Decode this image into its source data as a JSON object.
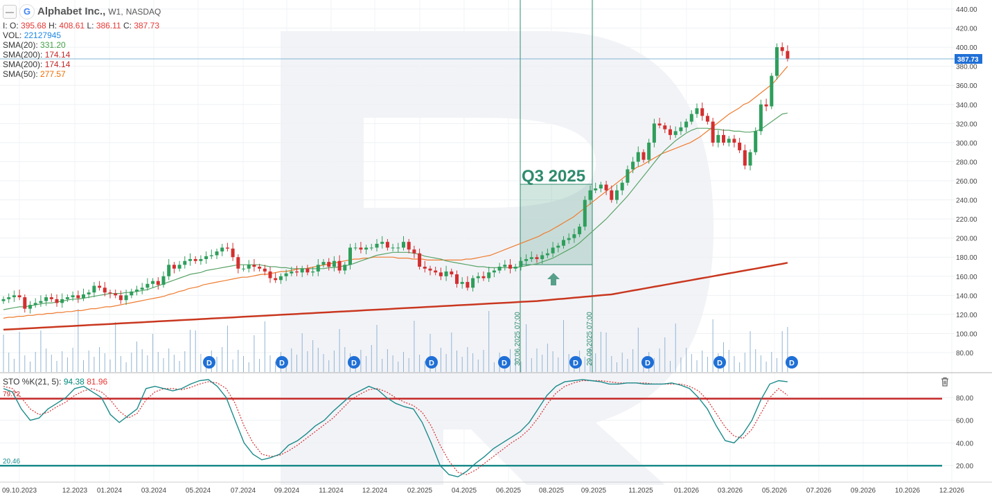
{
  "header": {
    "ticker": "Alphabet Inc.,",
    "timeframe": "W1,",
    "exchange": "NASDAQ",
    "ohlc": {
      "o_label": "I: O:",
      "o": "395.68",
      "h_label": "H:",
      "h": "408.61",
      "l_label": "L:",
      "l": "386.11",
      "c_label": "C:",
      "c": "387.73"
    },
    "vol_label": "VOL:",
    "vol": "22127945",
    "indicators": [
      {
        "label": "SMA(20):",
        "value": "331.20"
      },
      {
        "label": "SMA(200):",
        "value": "174.14"
      },
      {
        "label": "SMA(200):",
        "value": "174.14"
      },
      {
        "label": "SMA(50):",
        "value": "277.57"
      }
    ]
  },
  "oscillator": {
    "label": "STO %K(21, 5):",
    "k": "94.38",
    "d": "81.96",
    "upper_level": "79.72",
    "lower_level": "20.46"
  },
  "current_price_tag": "387.73",
  "annotation": {
    "label": "Q3 2025",
    "start_date": "30.06.2025 07:00",
    "end_date": "29.09.2025 07:00"
  },
  "dividend_marker": "D",
  "colors": {
    "up": "#2e9e5b",
    "down": "#d32f2f",
    "sma20": "#5aa469",
    "sma50": "#ef7b2e",
    "sma200": "#c9371f",
    "k": "#1a8a8a",
    "d": "#d32f2f",
    "level": "#c62828",
    "level_low": "#1a8a8a",
    "volume": "#90b4d4",
    "highlight": "#2e8b6d"
  },
  "chart_data": [
    {
      "type": "candlestick",
      "title": "Alphabet Inc., W1, NASDAQ",
      "xlabel": "",
      "ylabel": "",
      "ylim": [
        60,
        450
      ],
      "y_ticks": [
        "440.00",
        "420.00",
        "400.00",
        "380.00",
        "360.00",
        "340.00",
        "320.00",
        "300.00",
        "280.00",
        "260.00",
        "240.00",
        "220.00",
        "200.00",
        "180.00",
        "160.00",
        "140.00",
        "120.00",
        "100.00",
        "80.00"
      ],
      "x_ticks": [
        "09.10.2023",
        "12.2023",
        "01.2024",
        "03.2024",
        "05.2024",
        "07.2024",
        "09.2024",
        "11.2024",
        "12.2024",
        "02.2025",
        "04.2025",
        "06.2025",
        "08.2025",
        "09.2025",
        "11.2025",
        "01.2026",
        "03.2026",
        "05.2026",
        "07.2026",
        "09.2026",
        "10.2026",
        "12.2026"
      ],
      "closes": [
        136,
        138,
        140,
        138,
        126,
        130,
        132,
        134,
        138,
        136,
        132,
        136,
        138,
        140,
        137,
        141,
        143,
        150,
        148,
        143,
        142,
        140,
        135,
        140,
        144,
        146,
        148,
        152,
        155,
        151,
        160,
        172,
        168,
        172,
        176,
        178,
        176,
        178,
        181,
        182,
        186,
        190,
        189,
        180,
        168,
        168,
        172,
        170,
        168,
        165,
        158,
        156,
        160,
        163,
        165,
        164,
        168,
        164,
        165,
        172,
        175,
        170,
        176,
        166,
        172,
        190,
        190,
        188,
        190,
        190,
        194,
        196,
        190,
        190,
        190,
        196,
        188,
        184,
        170,
        168,
        166,
        164,
        160,
        165,
        162,
        152,
        154,
        148,
        158,
        160,
        158,
        164,
        166,
        170,
        172,
        168,
        170,
        176,
        178,
        180,
        178,
        182,
        184,
        190,
        192,
        198,
        200,
        204,
        212,
        240,
        250,
        252,
        256,
        250,
        240,
        250,
        258,
        272,
        280,
        290,
        282,
        300,
        320,
        318,
        314,
        308,
        312,
        316,
        322,
        330,
        336,
        328,
        322,
        300,
        308,
        300,
        304,
        300,
        292,
        276,
        290,
        312,
        340,
        338,
        370,
        400,
        396,
        388
      ],
      "sma20": [
        125,
        126,
        127,
        128,
        128,
        129,
        130,
        131,
        132,
        132,
        133,
        134,
        135,
        136,
        136,
        137,
        138,
        139,
        140,
        141,
        142,
        142,
        142,
        143,
        143,
        144,
        145,
        146,
        148,
        150,
        152,
        154,
        156,
        158,
        160,
        162,
        163,
        164,
        166,
        167,
        168,
        169,
        170,
        171,
        172,
        172,
        172,
        172,
        172,
        171,
        170,
        170,
        169,
        169,
        168,
        168,
        168,
        168,
        168,
        168,
        168,
        169,
        169,
        170,
        171,
        172,
        174,
        176,
        178,
        180,
        182,
        183,
        184,
        185,
        185,
        185,
        185,
        184,
        183,
        181,
        180,
        179,
        178,
        176,
        175,
        174,
        173,
        172,
        171,
        170,
        170,
        169,
        169,
        169,
        169,
        169,
        169,
        170,
        171,
        172,
        173,
        175,
        177,
        179,
        182,
        185,
        188,
        191,
        195,
        200,
        205,
        210,
        215,
        220,
        226,
        232,
        238,
        244,
        251,
        258,
        265,
        272,
        279,
        286,
        292,
        297,
        302,
        306,
        310,
        313,
        315,
        315,
        315,
        314,
        314,
        313,
        313,
        312,
        312,
        311,
        311,
        312,
        314,
        318,
        322,
        326,
        330,
        331
      ],
      "sma50": [
        116,
        117,
        117,
        118,
        118,
        119,
        119,
        120,
        120,
        121,
        121,
        122,
        122,
        123,
        123,
        124,
        124,
        125,
        126,
        126,
        127,
        128,
        128,
        129,
        130,
        131,
        132,
        133,
        134,
        135,
        136,
        137,
        138,
        139,
        141,
        142,
        144,
        145,
        147,
        148,
        149,
        151,
        152,
        153,
        154,
        155,
        156,
        157,
        158,
        159,
        159,
        160,
        161,
        162,
        162,
        163,
        164,
        165,
        165,
        166,
        167,
        168,
        168,
        169,
        170,
        171,
        172,
        173,
        174,
        175,
        176,
        177,
        178,
        178,
        179,
        179,
        180,
        180,
        180,
        180,
        180,
        179,
        179,
        179,
        178,
        178,
        178,
        177,
        177,
        177,
        177,
        177,
        177,
        177,
        177,
        178,
        178,
        179,
        180,
        181,
        182,
        184,
        186,
        188,
        190,
        192,
        194,
        196,
        198,
        200,
        202,
        205,
        207,
        210,
        213,
        216,
        219,
        222,
        226,
        230,
        234,
        238,
        242,
        246,
        250,
        254,
        258,
        262,
        266,
        270,
        274,
        276,
        279,
        282,
        285,
        288,
        290,
        292,
        294,
        296,
        298,
        300,
        303,
        306,
        310,
        314,
        318,
        322,
        326,
        330,
        333,
        336,
        340,
        342,
        346,
        350,
        354,
        358,
        362,
        368,
        374,
        380
      ],
      "sma200": [
        104,
        104.3,
        104.6,
        104.9,
        105.2,
        105.5,
        105.8,
        106.1,
        106.4,
        106.7,
        107,
        107.3,
        107.6,
        107.9,
        108.2,
        108.5,
        108.8,
        109.1,
        109.4,
        109.7,
        110,
        110.3,
        110.6,
        110.9,
        111.2,
        111.5,
        111.8,
        112.1,
        112.4,
        112.7,
        113,
        113.3,
        113.6,
        113.9,
        114.2,
        114.5,
        114.8,
        115.1,
        115.4,
        115.7,
        116,
        116.3,
        116.6,
        116.9,
        117.2,
        117.5,
        117.8,
        118.1,
        118.4,
        118.7,
        119,
        119.3,
        119.6,
        119.9,
        120.2,
        120.5,
        120.8,
        121.1,
        121.4,
        121.7,
        122,
        122.3,
        122.6,
        122.9,
        123.2,
        123.5,
        123.8,
        124.1,
        124.4,
        124.7,
        125,
        125.3,
        125.6,
        125.9,
        126.2,
        126.5,
        126.8,
        127.1,
        127.4,
        127.7,
        128,
        128.3,
        128.6,
        128.9,
        129.2,
        129.5,
        129.8,
        130.1,
        130.4,
        130.7,
        131,
        131.3,
        131.6,
        131.9,
        132.2,
        132.5,
        132.8,
        133.1,
        133.4,
        133.7,
        134,
        134.5,
        135,
        135.5,
        136,
        136.5,
        137,
        137.5,
        138,
        138.5,
        139,
        139.5,
        140,
        140.5,
        141,
        142,
        143,
        144,
        145,
        146,
        147,
        148,
        149,
        150,
        151,
        152,
        153,
        154,
        155,
        156,
        157,
        158,
        159,
        160,
        161,
        162,
        163,
        164,
        165,
        166,
        167,
        168,
        169,
        170,
        171,
        172,
        173,
        174.14
      ]
    },
    {
      "type": "line",
      "title": "STO %K(21, 5)",
      "ylim": [
        0,
        100
      ],
      "y_ticks": [
        "80.00",
        "60.00",
        "40.00",
        "20.00"
      ],
      "levels": [
        79.72,
        20.46
      ],
      "series": [
        {
          "name": "%K",
          "values": [
            88,
            85,
            70,
            60,
            62,
            70,
            75,
            80,
            88,
            90,
            85,
            80,
            65,
            58,
            64,
            70,
            88,
            90,
            88,
            86,
            88,
            92,
            95,
            96,
            90,
            80,
            60,
            40,
            30,
            25,
            27,
            30,
            38,
            42,
            48,
            55,
            60,
            68,
            75,
            82,
            86,
            90,
            87,
            80,
            75,
            72,
            70,
            58,
            40,
            20,
            12,
            10,
            15,
            22,
            28,
            35,
            40,
            45,
            50,
            58,
            70,
            82,
            90,
            94,
            95,
            96,
            95,
            94,
            92,
            92,
            93,
            93,
            92,
            92,
            92,
            93,
            91,
            88,
            80,
            70,
            55,
            42,
            40,
            48,
            60,
            78,
            92,
            95,
            94
          ]
        },
        {
          "name": "%D",
          "values": [
            90,
            88,
            80,
            70,
            65,
            67,
            72,
            76,
            82,
            86,
            88,
            85,
            78,
            68,
            62,
            66,
            78,
            85,
            88,
            88,
            87,
            89,
            92,
            94,
            93,
            88,
            75,
            55,
            40,
            30,
            28,
            29,
            33,
            38,
            44,
            50,
            56,
            62,
            70,
            78,
            83,
            87,
            88,
            85,
            80,
            76,
            73,
            67,
            55,
            38,
            24,
            14,
            12,
            16,
            22,
            28,
            34,
            40,
            45,
            52,
            62,
            74,
            84,
            90,
            93,
            95,
            95,
            95,
            94,
            93,
            93,
            93,
            93,
            92,
            92,
            92,
            92,
            90,
            86,
            78,
            66,
            54,
            46,
            44,
            52,
            66,
            80,
            88,
            82
          ]
        }
      ]
    }
  ]
}
